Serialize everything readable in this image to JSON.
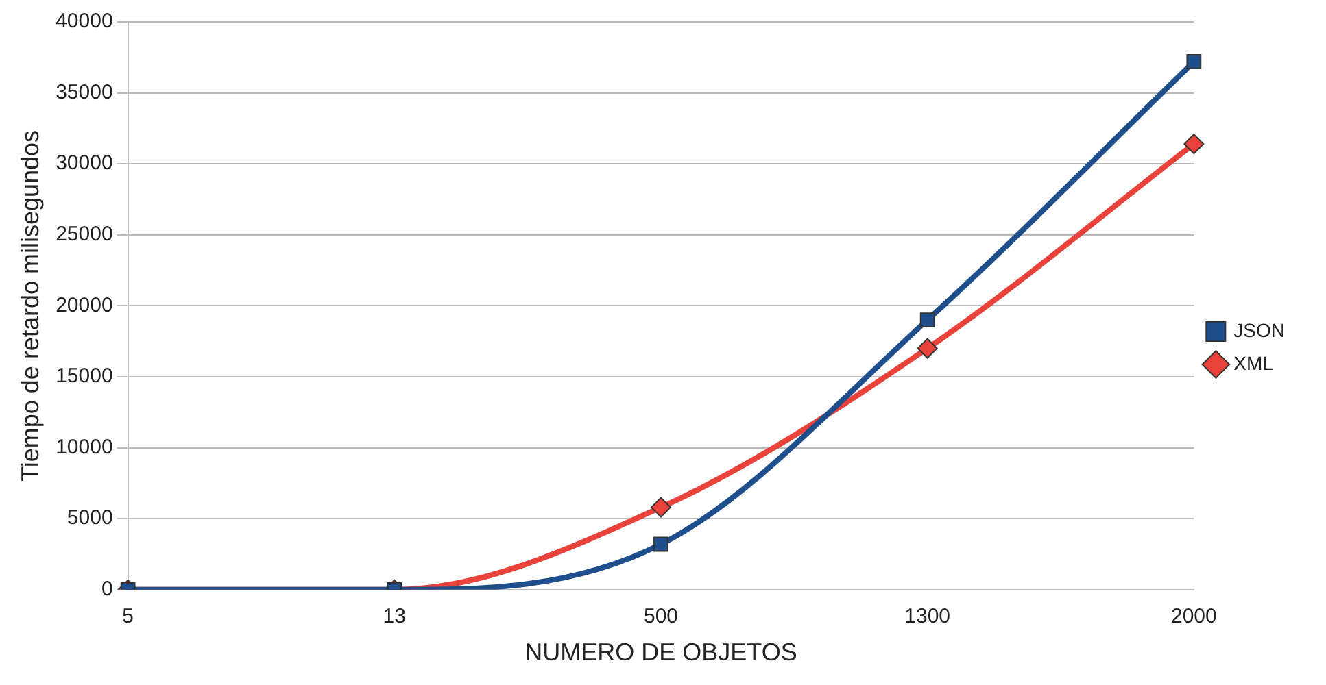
{
  "chart_data": {
    "type": "line",
    "xlabel": "NUMERO DE OBJETOS",
    "ylabel": "Tiempo de retardo milisegundos",
    "categories": [
      "5",
      "13",
      "500",
      "1300",
      "2000"
    ],
    "series": [
      {
        "name": "JSON",
        "color": "#1f4e8c",
        "marker": "square",
        "values": [
          0,
          0,
          3200,
          19000,
          37200
        ]
      },
      {
        "name": "XML",
        "color": "#e8423a",
        "marker": "diamond",
        "values": [
          0,
          0,
          5800,
          17000,
          31400
        ]
      }
    ],
    "ylim": [
      0,
      40000
    ],
    "yticks": [
      0,
      5000,
      10000,
      15000,
      20000,
      25000,
      30000,
      35000,
      40000
    ],
    "grid": "y",
    "legend": "right"
  }
}
